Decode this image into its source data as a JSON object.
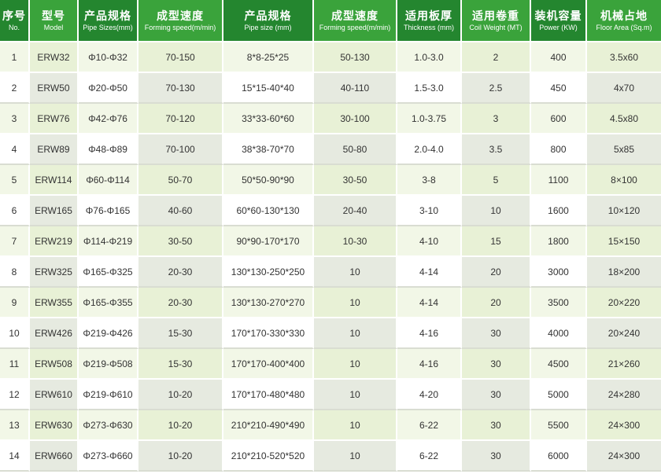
{
  "colors": {
    "header_dark": "#24862f",
    "header_light": "#3aa33b",
    "row_tint": "#f2f7e7"
  },
  "headers": [
    {
      "zh": "序号",
      "en": "No."
    },
    {
      "zh": "型号",
      "en": "Model"
    },
    {
      "zh": "产品规格",
      "en": "Pipe Sizes(mm)"
    },
    {
      "zh": "成型速度",
      "en": "Forming speed(m/min)"
    },
    {
      "zh": "产品规格",
      "en": "Pipe size (mm)"
    },
    {
      "zh": "成型速度",
      "en": "Forming speed(m/min)"
    },
    {
      "zh": "适用板厚",
      "en": "Thickness (mm)"
    },
    {
      "zh": "适用卷重",
      "en": "Coil Weight (MT)"
    },
    {
      "zh": "装机容量",
      "en": "Power (KW)"
    },
    {
      "zh": "机械占地",
      "en": "Floor Area (Sq.m)"
    }
  ],
  "rows": [
    [
      "1",
      "ERW32",
      "Φ10-Φ32",
      "70-150",
      "8*8-25*25",
      "50-130",
      "1.0-3.0",
      "2",
      "400",
      "3.5x60"
    ],
    [
      "2",
      "ERW50",
      "Φ20-Φ50",
      "70-130",
      "15*15-40*40",
      "40-110",
      "1.5-3.0",
      "2.5",
      "450",
      "4x70"
    ],
    [
      "3",
      "ERW76",
      "Φ42-Φ76",
      "70-120",
      "33*33-60*60",
      "30-100",
      "1.0-3.75",
      "3",
      "600",
      "4.5x80"
    ],
    [
      "4",
      "ERW89",
      "Φ48-Φ89",
      "70-100",
      "38*38-70*70",
      "50-80",
      "2.0-4.0",
      "3.5",
      "800",
      "5x85"
    ],
    [
      "5",
      "ERW114",
      "Φ60-Φ114",
      "50-70",
      "50*50-90*90",
      "30-50",
      "3-8",
      "5",
      "1100",
      "8×100"
    ],
    [
      "6",
      "ERW165",
      "Φ76-Φ165",
      "40-60",
      "60*60-130*130",
      "20-40",
      "3-10",
      "10",
      "1600",
      "10×120"
    ],
    [
      "7",
      "ERW219",
      "Φ114-Φ219",
      "30-50",
      "90*90-170*170",
      "10-30",
      "4-10",
      "15",
      "1800",
      "15×150"
    ],
    [
      "8",
      "ERW325",
      "Φ165-Φ325",
      "20-30",
      "130*130-250*250",
      "10",
      "4-14",
      "20",
      "3000",
      "18×200"
    ],
    [
      "9",
      "ERW355",
      "Φ165-Φ355",
      "20-30",
      "130*130-270*270",
      "10",
      "4-14",
      "20",
      "3500",
      "20×220"
    ],
    [
      "10",
      "ERW426",
      "Φ219-Φ426",
      "15-30",
      "170*170-330*330",
      "10",
      "4-16",
      "30",
      "4000",
      "20×240"
    ],
    [
      "11",
      "ERW508",
      "Φ219-Φ508",
      "15-30",
      "170*170-400*400",
      "10",
      "4-16",
      "30",
      "4500",
      "21×260"
    ],
    [
      "12",
      "ERW610",
      "Φ219-Φ610",
      "10-20",
      "170*170-480*480",
      "10",
      "4-20",
      "30",
      "5000",
      "24×280"
    ],
    [
      "13",
      "ERW630",
      "Φ273-Φ630",
      "10-20",
      "210*210-490*490",
      "10",
      "6-22",
      "30",
      "5500",
      "24×300"
    ],
    [
      "14",
      "ERW660",
      "Φ273-Φ660",
      "10-20",
      "210*210-520*520",
      "10",
      "6-22",
      "30",
      "6000",
      "24×300"
    ]
  ]
}
